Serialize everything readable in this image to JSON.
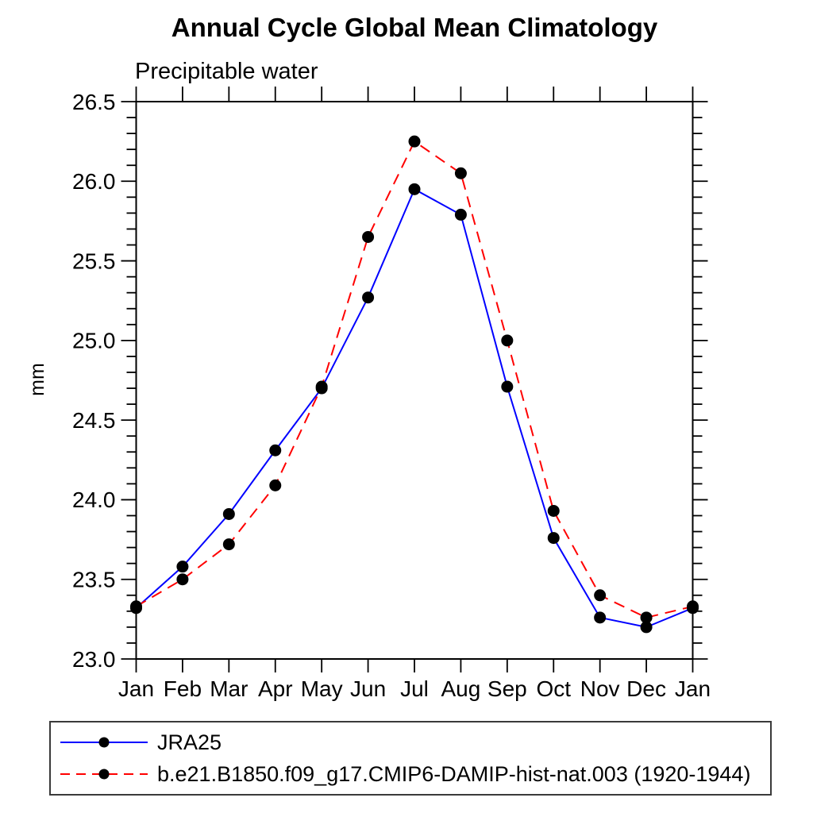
{
  "chart_data": {
    "type": "line",
    "title": "Annual Cycle Global Mean Climatology",
    "subtitle": "Precipitable water",
    "ylabel": "mm",
    "x_categories": [
      "Jan",
      "Feb",
      "Mar",
      "Apr",
      "May",
      "Jun",
      "Jul",
      "Aug",
      "Sep",
      "Oct",
      "Nov",
      "Dec",
      "Jan"
    ],
    "ylim": [
      23.0,
      26.5
    ],
    "ytick_major_interval": 0.5,
    "ytick_minor_interval": 0.1,
    "grid": false,
    "legend_position": "bottom-left-box",
    "series": [
      {
        "name": "JRA25",
        "color": "#0000ff",
        "line_style": "solid",
        "marker": "filled-circle",
        "marker_color": "#000000",
        "values": [
          23.32,
          23.58,
          23.91,
          24.31,
          24.7,
          25.27,
          25.95,
          25.79,
          24.71,
          23.76,
          23.26,
          23.2,
          23.32
        ]
      },
      {
        "name": "b.e21.B1850.f09_g17.CMIP6-DAMIP-hist-nat.003 (1920-1944)",
        "color": "#ff0000",
        "line_style": "dashed",
        "marker": "filled-circle",
        "marker_color": "#000000",
        "values": [
          23.33,
          23.5,
          23.72,
          24.09,
          24.71,
          25.65,
          26.25,
          26.05,
          25.0,
          23.93,
          23.4,
          23.26,
          23.33
        ]
      }
    ]
  },
  "colors": {
    "background": "#ffffff",
    "axis": "#000000",
    "text": "#000000",
    "legend_border": "#3a3a3a"
  }
}
